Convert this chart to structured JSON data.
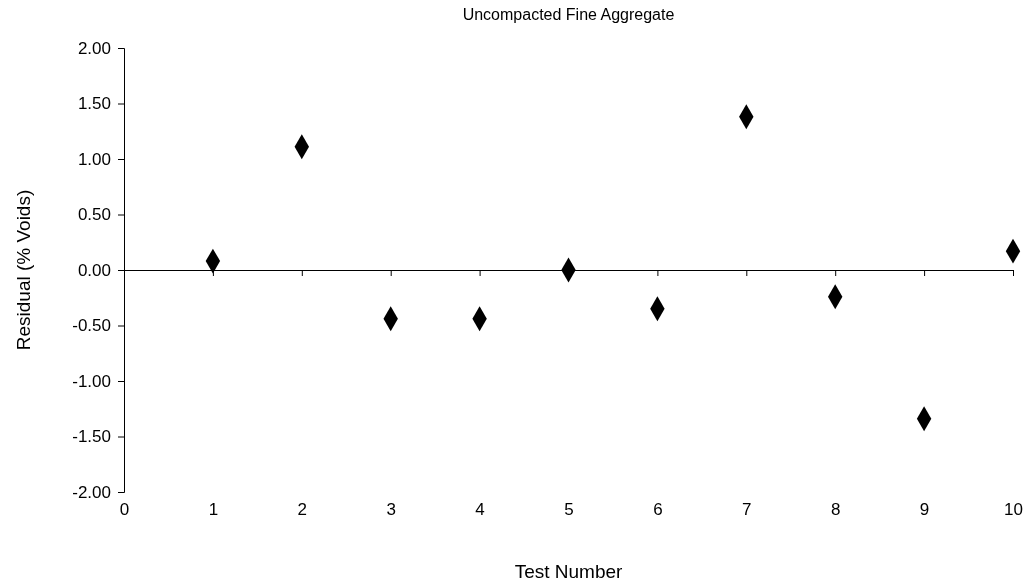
{
  "chart_data": {
    "type": "scatter",
    "title": "Uncompacted Fine Aggregate",
    "xlabel": "Test Number",
    "ylabel": "Residual (% Voids)",
    "x": [
      1,
      2,
      3,
      4,
      5,
      6,
      7,
      8,
      9,
      10
    ],
    "values": [
      0.08,
      1.11,
      -0.44,
      -0.44,
      0.0,
      -0.35,
      1.38,
      -0.24,
      -1.34,
      0.17
    ],
    "color": "#000000",
    "marker": "diamond",
    "xlim": [
      0,
      10
    ],
    "xticks": [
      0,
      1,
      2,
      3,
      4,
      5,
      6,
      7,
      8,
      9,
      10
    ],
    "ylim": [
      -2,
      2
    ],
    "yticks": [
      {
        "value": -2,
        "label": "-2.00"
      },
      {
        "value": -1.5,
        "label": "-1.50"
      },
      {
        "value": -1,
        "label": "-1.00"
      },
      {
        "value": -0.5,
        "label": "-0.50"
      },
      {
        "value": 0,
        "label": "0.00"
      },
      {
        "value": 0.5,
        "label": "0.50"
      },
      {
        "value": 1,
        "label": "1.00"
      },
      {
        "value": 1.5,
        "label": "1.50"
      },
      {
        "value": 2,
        "label": "2.00"
      }
    ],
    "tick_labels": "xy"
  }
}
